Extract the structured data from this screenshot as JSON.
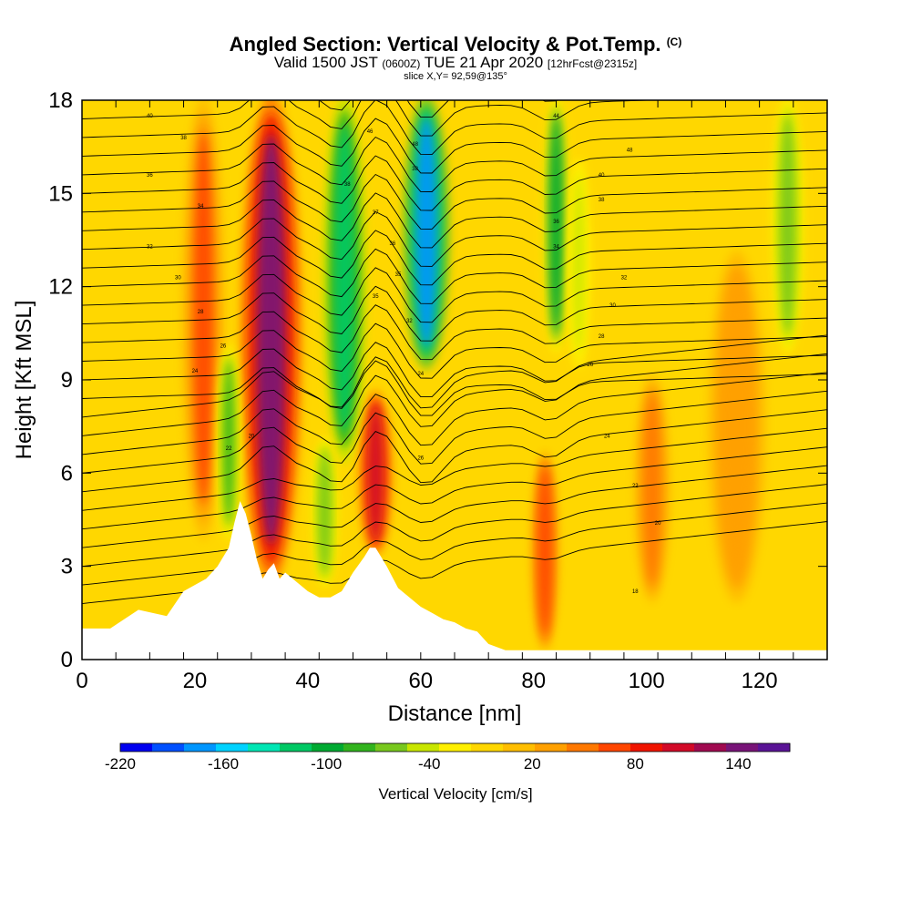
{
  "title": {
    "main": "Angled Section: Vertical Velocity & Pot.Temp.",
    "copyright": "(C)",
    "valid_prefix": "Valid 1500 JST",
    "valid_z": "(0600Z)",
    "valid_date": "TUE 21 Apr 2020",
    "forecast": "[12hrFcst@2315z]",
    "slice": "slice X,Y= 92,59@135°"
  },
  "colors": {
    "background_field": "#ffd700",
    "terrain": "#ffffff",
    "contour": "#000000"
  },
  "chart_data": {
    "type": "heatmap",
    "xlabel": "Distance [nm]",
    "ylabel": "Height [Kft MSL]",
    "xlim": [
      0,
      132
    ],
    "ylim": [
      0,
      18
    ],
    "x_ticks": [
      0,
      20,
      40,
      60,
      80,
      100,
      120
    ],
    "y_ticks": [
      0,
      3,
      6,
      9,
      12,
      15,
      18
    ],
    "colorbar": {
      "label": "Vertical Velocity [cm/s]",
      "tick_labels": [
        "-220",
        "-160",
        "-100",
        "-40",
        "20",
        "80",
        "140"
      ],
      "tick_values": [
        -220,
        -160,
        -100,
        -40,
        20,
        80,
        140
      ],
      "min": -220,
      "max": 170,
      "colors": [
        "#0000f0",
        "#0050ff",
        "#0096ff",
        "#00d2ff",
        "#00e6b4",
        "#00c864",
        "#00aa32",
        "#32b41e",
        "#78c81e",
        "#c8e600",
        "#fff000",
        "#ffd700",
        "#ffbe00",
        "#ffa000",
        "#ff7800",
        "#ff4600",
        "#f01400",
        "#d20a28",
        "#a00a50",
        "#781478",
        "#5a1496"
      ]
    },
    "terrain_profile": {
      "x": [
        0,
        5,
        10,
        15,
        18,
        20,
        22,
        24,
        26,
        27,
        28,
        29,
        30,
        31,
        32,
        33,
        34,
        35,
        36,
        38,
        40,
        42,
        44,
        46,
        48,
        50,
        51,
        52,
        53,
        54,
        56,
        58,
        60,
        62,
        64,
        66,
        68,
        70,
        72,
        75,
        80,
        100,
        132
      ],
      "height": [
        1.0,
        1.0,
        1.6,
        1.4,
        2.2,
        2.4,
        2.6,
        3.0,
        3.6,
        4.4,
        5.1,
        4.7,
        4.0,
        3.2,
        2.6,
        2.9,
        3.1,
        2.6,
        2.8,
        2.5,
        2.2,
        2.0,
        2.0,
        2.2,
        2.8,
        3.3,
        3.6,
        3.6,
        3.3,
        3.0,
        2.3,
        2.0,
        1.7,
        1.5,
        1.3,
        1.2,
        1.0,
        0.9,
        0.5,
        0.3,
        0.3,
        0.3,
        0.3
      ]
    },
    "vertical_velocity_features": [
      {
        "x": 33.5,
        "width": 4.2,
        "z_bottom": 2.6,
        "z_top": 18,
        "w": 135
      },
      {
        "x": 52,
        "width": 2.4,
        "z_bottom": 3.5,
        "z_top": 8.5,
        "w": 110
      },
      {
        "x": 21.5,
        "width": 3.0,
        "z_bottom": 4,
        "z_top": 18,
        "w": 60
      },
      {
        "x": 82,
        "width": 1.8,
        "z_bottom": 0.5,
        "z_top": 6.5,
        "w": 70
      },
      {
        "x": 101,
        "width": 2.5,
        "z_bottom": 2,
        "z_top": 9,
        "w": 45
      },
      {
        "x": 116,
        "width": 4,
        "z_bottom": 2,
        "z_top": 13,
        "w": 40
      },
      {
        "x": 61,
        "width": 3.2,
        "z_bottom": 9.5,
        "z_top": 18,
        "w": -170
      },
      {
        "x": 46.5,
        "width": 3.0,
        "z_bottom": 6.5,
        "z_top": 18,
        "w": -110
      },
      {
        "x": 84,
        "width": 1.8,
        "z_bottom": 10,
        "z_top": 18,
        "w": -90
      },
      {
        "x": 26,
        "width": 1.6,
        "z_bottom": 4,
        "z_top": 10,
        "w": -80
      },
      {
        "x": 43,
        "width": 1.8,
        "z_bottom": 2.5,
        "z_top": 7,
        "w": -70
      },
      {
        "x": 125,
        "width": 2.2,
        "z_bottom": 10,
        "z_top": 18,
        "w": -60
      },
      {
        "x": 88,
        "width": 1.5,
        "z_bottom": 9.5,
        "z_top": 16,
        "w": -50
      }
    ],
    "isentrope_labels": [
      {
        "x": 12,
        "z": 17.5,
        "text": "40"
      },
      {
        "x": 18,
        "z": 16.8,
        "text": "38"
      },
      {
        "x": 12,
        "z": 15.6,
        "text": "36"
      },
      {
        "x": 21,
        "z": 14.6,
        "text": "34"
      },
      {
        "x": 12,
        "z": 13.3,
        "text": "32"
      },
      {
        "x": 17,
        "z": 12.3,
        "text": "30"
      },
      {
        "x": 21,
        "z": 11.2,
        "text": "28"
      },
      {
        "x": 25,
        "z": 10.1,
        "text": "26"
      },
      {
        "x": 20,
        "z": 9.3,
        "text": "24"
      },
      {
        "x": 26,
        "z": 6.8,
        "text": "22"
      },
      {
        "x": 30,
        "z": 7.2,
        "text": "20"
      },
      {
        "x": 51,
        "z": 17.0,
        "text": "46"
      },
      {
        "x": 47,
        "z": 15.3,
        "text": "38"
      },
      {
        "x": 52,
        "z": 14.4,
        "text": "37"
      },
      {
        "x": 55,
        "z": 13.4,
        "text": "36"
      },
      {
        "x": 56,
        "z": 12.4,
        "text": "35"
      },
      {
        "x": 52,
        "z": 11.7,
        "text": "35"
      },
      {
        "x": 58,
        "z": 10.9,
        "text": "32"
      },
      {
        "x": 60,
        "z": 9.2,
        "text": "24"
      },
      {
        "x": 60,
        "z": 6.5,
        "text": "26"
      },
      {
        "x": 59,
        "z": 16.6,
        "text": "48"
      },
      {
        "x": 59,
        "z": 15.8,
        "text": "38"
      },
      {
        "x": 84,
        "z": 17.5,
        "text": "44"
      },
      {
        "x": 97,
        "z": 16.4,
        "text": "48"
      },
      {
        "x": 92,
        "z": 15.6,
        "text": "40"
      },
      {
        "x": 92,
        "z": 14.8,
        "text": "38"
      },
      {
        "x": 84,
        "z": 14.1,
        "text": "36"
      },
      {
        "x": 84,
        "z": 13.3,
        "text": "34"
      },
      {
        "x": 96,
        "z": 12.3,
        "text": "32"
      },
      {
        "x": 94,
        "z": 11.4,
        "text": "30"
      },
      {
        "x": 92,
        "z": 10.4,
        "text": "28"
      },
      {
        "x": 90,
        "z": 9.5,
        "text": "26"
      },
      {
        "x": 93,
        "z": 7.2,
        "text": "24"
      },
      {
        "x": 98,
        "z": 5.6,
        "text": "22"
      },
      {
        "x": 102,
        "z": 4.4,
        "text": "20"
      },
      {
        "x": 98,
        "z": 2.2,
        "text": "18"
      }
    ]
  }
}
